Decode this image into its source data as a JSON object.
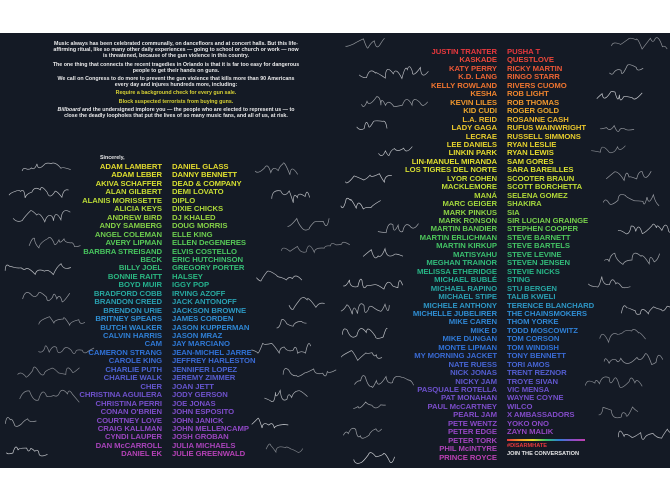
{
  "letter": {
    "paragraphs": [
      "Music always has been celebrated communally, on dancefloors and at concert halls. But this life-affirming ritual, like so many other daily experiences — going to school or church or work — now is threatened, because of the gun violence in this country.",
      "The one thing that connects the recent tragedies in Orlando is that it is far too easy for dangerous people to get their hands on guns.",
      "We call on Congress to do more to prevent the gun violence that kills more than 90 Americans every day and injures hundreds more, including:"
    ],
    "demands": [
      "Require a background check for every gun sale.",
      "Block suspected terrorists from buying guns."
    ],
    "closing_publication": "Billboard",
    "closing_rest": " and the undersigned implore you — the people who are elected to represent us — to close the deadly loopholes that put the lives of so many music fans, and all of us, at risk.",
    "sincerely": "Sincerely,"
  },
  "colors": {
    "background": "#141a25",
    "text": "#e9e9ea",
    "gradient": [
      "#e8383d",
      "#ef7a2e",
      "#e9c52c",
      "#dfe02f",
      "#a9d63a",
      "#4cc75a",
      "#23b38a",
      "#2f8ed2",
      "#2f6fd6",
      "#6a52cc",
      "#8a48c6",
      "#c03fb0"
    ]
  },
  "signatories": {
    "left_col_a": [
      "ADAM LAMBERT",
      "ADAM LEBER",
      "AKIVA SCHAFFER",
      "ALAN GILBERT",
      "ALANIS MORISSETTE",
      "ALICIA KEYS",
      "ANDREW BIRD",
      "ANDY SAMBERG",
      "ANGEL COLEMAN",
      "AVERY LIPMAN",
      "BARBRA STREISAND",
      "BECK",
      "BILLY JOEL",
      "BONNIE RAITT",
      "BOYD MUIR",
      "BRADFORD COBB",
      "BRANDON CREED",
      "BRENDON URIE",
      "BRITNEY SPEARS",
      "BUTCH WALKER",
      "CALVIN HARRIS",
      "CAM",
      "CAMERON STRANG",
      "CAROLE KING",
      "CHARLIE PUTH",
      "CHARLIE WALK",
      "CHER",
      "CHRISTINA AGUILERA",
      "CHRISTINA PERRI",
      "CONAN O'BRIEN",
      "COURTNEY LOVE",
      "CRAIG KALLMAN",
      "CYNDI LAUPER",
      "DAN McCARROLL",
      "DANIEL EK"
    ],
    "left_col_b": [
      "DANIEL GLASS",
      "DANNY BENNETT",
      "DEAD & COMPANY",
      "DEMI LOVATO",
      "DIPLO",
      "DIXIE CHICKS",
      "DJ KHALED",
      "DOUG MORRIS",
      "ELLE KING",
      "ELLEN DeGENERES",
      "ELVIS COSTELLO",
      "ERIC HUTCHINSON",
      "GREGORY PORTER",
      "HALSEY",
      "IGGY POP",
      "IRVING AZOFF",
      "JACK ANTONOFF",
      "JACKSON BROWNE",
      "JAMES CORDEN",
      "JASON KUPPERMAN",
      "JASON MRAZ",
      "JAY MARCIANO",
      "JEAN-MICHEL JARRE",
      "JEFFREY HARLESTON",
      "JENNIFER LOPEZ",
      "JEREMY ZIMMER",
      "JOAN JETT",
      "JODY GERSON",
      "JOE JONAS",
      "JOHN ESPOSITO",
      "JOHN JANICK",
      "JOHN MELLENCAMP",
      "JOSH GROBAN",
      "JULIA MICHAELS",
      "JULIE GREENWALD"
    ],
    "right_col_a": [
      "JUSTIN TRANTER",
      "KASKADE",
      "KATY PERRY",
      "K.D. LANG",
      "KELLY ROWLAND",
      "KESHA",
      "KEVIN LILES",
      "KID CUDI",
      "L.A. REID",
      "LADY GAGA",
      "LECRAE",
      "LEE DANIELS",
      "LINKIN PARK",
      "LIN-MANUEL MIRANDA",
      "LOS TIGRES DEL NORTE",
      "LYOR COHEN",
      "MACKLEMORE",
      "MANÁ",
      "MARC GEIGER",
      "MARK PINKUS",
      "MARK RONSON",
      "MARTIN BANDIER",
      "MARTIN ERLICHMAN",
      "MARTIN KIRKUP",
      "MATISYAHU",
      "MEGHAN TRAINOR",
      "MELISSA ETHERIDGE",
      "MICHAEL BUBLÉ",
      "MICHAEL RAPINO",
      "MICHAEL STIPE",
      "MICHELE ANTHONY",
      "MICHELLE JUBELIRER",
      "MIKE CAREN",
      "MIKE D",
      "MIKE DUNGAN",
      "MONTE LIPMAN",
      "MY MORNING JACKET",
      "NATE RUESS",
      "NICK JONAS",
      "NICKY JAM",
      "PASQUALE ROTELLA",
      "PAT MONAHAN",
      "PAUL McCARTNEY",
      "PEARL JAM",
      "PETE WENTZ",
      "PETER EDGE",
      "PETER TORK",
      "PHIL McINTYRE",
      "PRINCE ROYCE"
    ],
    "right_col_b": [
      "PUSHA T",
      "QUESTLOVE",
      "RICKY MARTIN",
      "RINGO STARR",
      "RIVERS CUOMO",
      "ROB LIGHT",
      "ROB THOMAS",
      "ROGER GOLD",
      "ROSANNE CASH",
      "RUFUS WAINWRIGHT",
      "RUSSELL SIMMONS",
      "RYAN LESLIE",
      "RYAN LEWIS",
      "SAM GORES",
      "SARA BAREILLES",
      "SCOOTER BRAUN",
      "SCOTT BORCHETTA",
      "SELENA GOMEZ",
      "SHAKIRA",
      "SIA",
      "SIR LUCIAN GRAINGE",
      "STEPHEN COOPER",
      "STEVE BARNETT",
      "STEVE BARTELS",
      "STEVE LEVINE",
      "STEVEN JENSEN",
      "STEVIE NICKS",
      "STING",
      "STU BERGEN",
      "TALIB KWELI",
      "TERENCE BLANCHARD",
      "THE CHAINSMOKERS",
      "THOM YORKE",
      "TODD MOSCOWITZ",
      "TOM CORSON",
      "TOM WINDISH",
      "TONY BENNETT",
      "TORI AMOS",
      "TRENT REZNOR",
      "TROYE SIVAN",
      "VIC MENSA",
      "WAYNE COYNE",
      "WILCO",
      "X AMBASSADORS",
      "YOKO ONO",
      "ZAYN MALIK"
    ]
  },
  "footer": {
    "hashtag": "#DISARMHATE",
    "cta": "JOIN THE CONVERSATION"
  }
}
